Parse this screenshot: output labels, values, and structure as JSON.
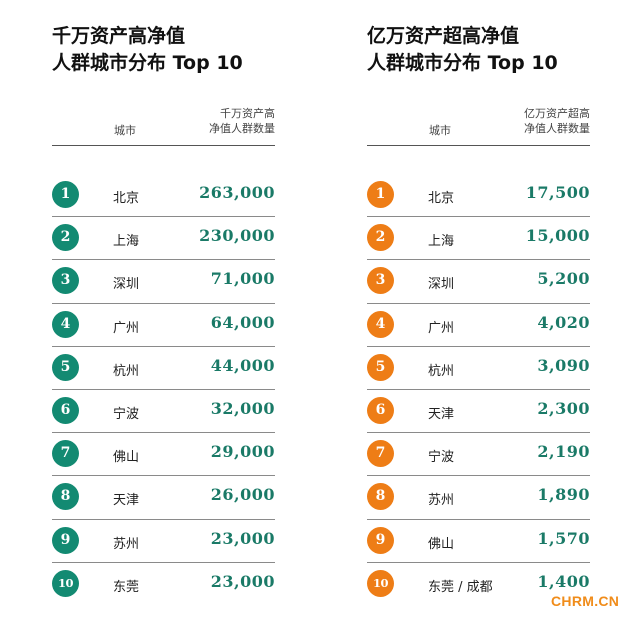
{
  "left": {
    "title_line1": "千万资产高净值",
    "title_line2": "人群城市分布 Top 10",
    "col_city": "城市",
    "col_count_line1": "千万资产高",
    "col_count_line2": "净值人群数量",
    "badge_color": "#138a72",
    "rows": [
      {
        "rank": "1",
        "city": "北京",
        "value": "263,000"
      },
      {
        "rank": "2",
        "city": "上海",
        "value": "230,000"
      },
      {
        "rank": "3",
        "city": "深圳",
        "value": "71,000"
      },
      {
        "rank": "4",
        "city": "广州",
        "value": "64,000"
      },
      {
        "rank": "5",
        "city": "杭州",
        "value": "44,000"
      },
      {
        "rank": "6",
        "city": "宁波",
        "value": "32,000"
      },
      {
        "rank": "7",
        "city": "佛山",
        "value": "29,000"
      },
      {
        "rank": "8",
        "city": "天津",
        "value": "26,000"
      },
      {
        "rank": "9",
        "city": "苏州",
        "value": "23,000"
      },
      {
        "rank": "10",
        "city": "东莞",
        "value": "23,000"
      }
    ]
  },
  "right": {
    "title_line1": "亿万资产超高净值",
    "title_line2": "人群城市分布 Top 10",
    "col_city": "城市",
    "col_count_line1": "亿万资产超高",
    "col_count_line2": "净值人群数量",
    "badge_color": "#ee7d16",
    "rows": [
      {
        "rank": "1",
        "city": "北京",
        "value": "17,500"
      },
      {
        "rank": "2",
        "city": "上海",
        "value": "15,000"
      },
      {
        "rank": "3",
        "city": "深圳",
        "value": "5,200"
      },
      {
        "rank": "4",
        "city": "广州",
        "value": "4,020"
      },
      {
        "rank": "5",
        "city": "杭州",
        "value": "3,090"
      },
      {
        "rank": "6",
        "city": "天津",
        "value": "2,300"
      },
      {
        "rank": "7",
        "city": "宁波",
        "value": "2,190"
      },
      {
        "rank": "8",
        "city": "苏州",
        "value": "1,890"
      },
      {
        "rank": "9",
        "city": "佛山",
        "value": "1,570"
      },
      {
        "rank": "10",
        "city": "东莞 / 成都",
        "value": "1,400"
      }
    ]
  },
  "watermark": "CHRM.CN",
  "value_color": "#1a7a67"
}
